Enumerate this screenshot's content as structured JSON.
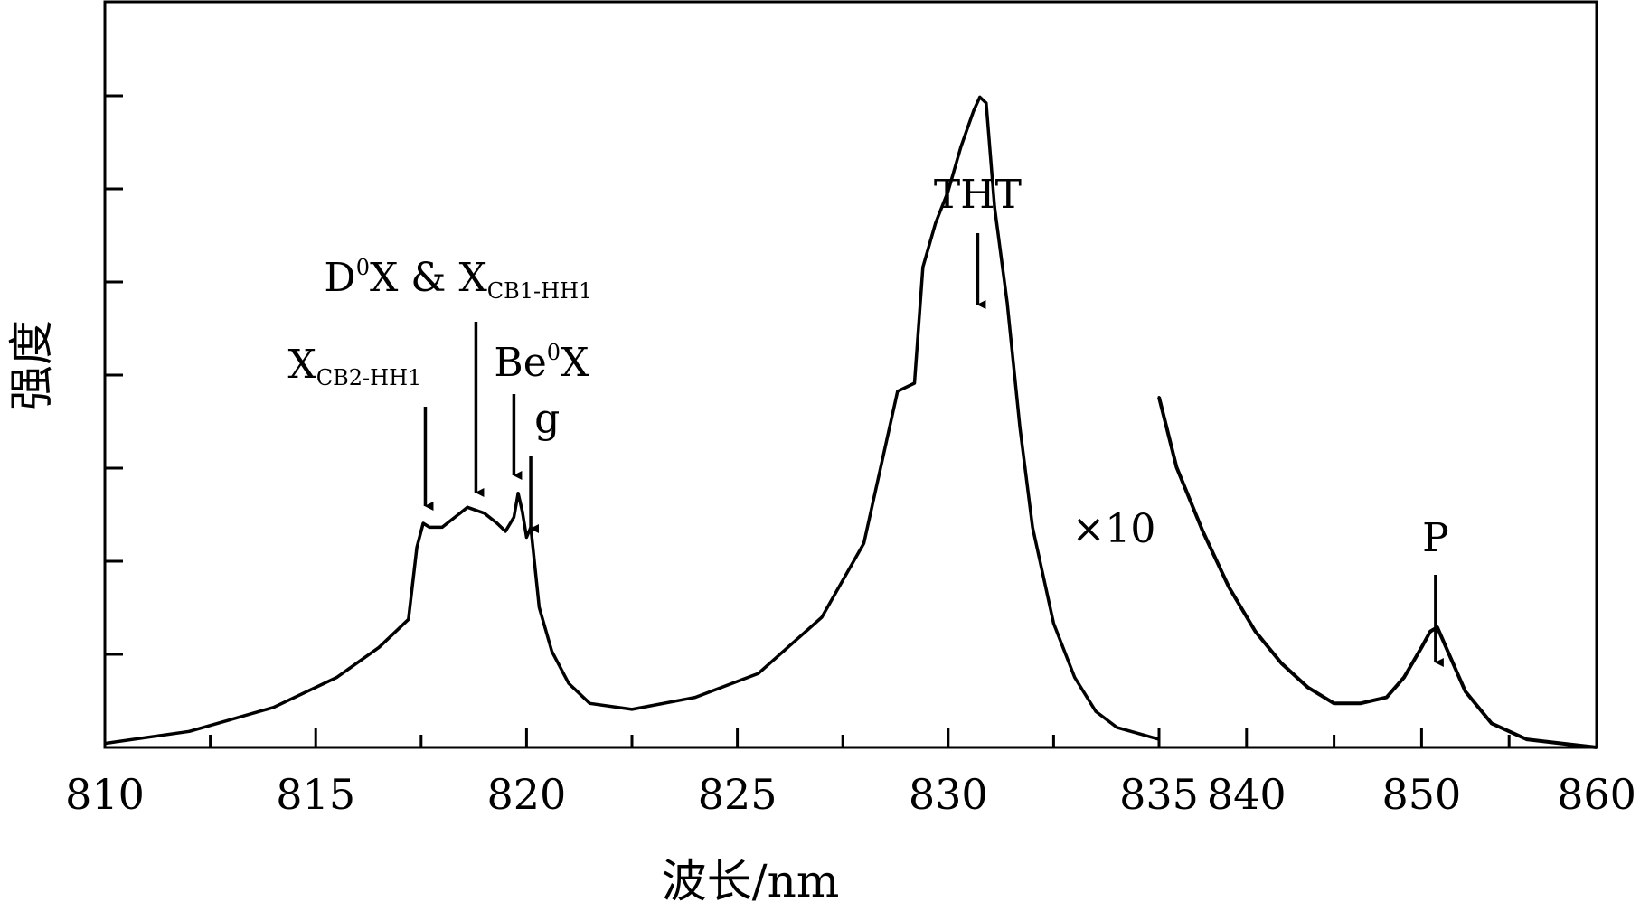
{
  "chart_data": {
    "type": "line",
    "xlabel": "波长/nm",
    "ylabel": "强度",
    "segments": [
      {
        "name": "main",
        "xlim": [
          810,
          835
        ],
        "tick_values": [
          810,
          815,
          820,
          825,
          830,
          835
        ],
        "tick_labels": [
          "810",
          "815",
          "820",
          "825",
          "830",
          "835"
        ],
        "minor_ticks": [
          812.5,
          817.5,
          822.5,
          827.5,
          832.5
        ],
        "x": [
          810.0,
          812.0,
          814.0,
          815.5,
          816.5,
          817.2,
          817.4,
          817.55,
          817.7,
          818.0,
          818.6,
          819.0,
          819.3,
          819.5,
          819.7,
          819.8,
          819.9,
          820.0,
          820.1,
          820.3,
          820.6,
          821.0,
          821.5,
          822.5,
          824.0,
          825.5,
          827.0,
          828.0,
          828.8,
          829.2,
          829.4,
          829.7,
          830.0,
          830.3,
          830.6,
          830.75,
          830.9,
          831.1,
          831.4,
          831.7,
          832.0,
          832.5,
          833.0,
          833.5,
          834.0,
          835.0
        ],
        "y": [
          2,
          8,
          20,
          35,
          50,
          64,
          100,
          112,
          110,
          110,
          120,
          117,
          112,
          108,
          115,
          127,
          118,
          105,
          110,
          70,
          48,
          32,
          22,
          19,
          25,
          37,
          65,
          102,
          178,
          182,
          240,
          262,
          278,
          300,
          318,
          325,
          322,
          270,
          222,
          160,
          110,
          62,
          35,
          18,
          10,
          4
        ],
        "annotations": [
          {
            "label": "XCB2-HH1",
            "main": "X",
            "sub": "CB2-HH1",
            "x": 817.6
          },
          {
            "label": "D0X & XCB1-HH1",
            "text": "D",
            "sup": "0",
            "rest": "X & X",
            "sub": "CB1-HH1",
            "x": 818.8
          },
          {
            "label": "Be0X",
            "main": "Be",
            "sup": "0",
            "rest": "X",
            "x": 819.7
          },
          {
            "label": "g",
            "main": "g",
            "x": 820.1
          },
          {
            "label": "THT",
            "main": "THT",
            "x": 830.7
          }
        ]
      },
      {
        "name": "x10",
        "scale_label": "×10",
        "xlim": [
          835,
          860
        ],
        "tick_values": [
          840,
          850,
          860
        ],
        "tick_labels": [
          "840",
          "850",
          "860"
        ],
        "minor_ticks": [
          845,
          855
        ],
        "x": [
          835.0,
          836.0,
          837.5,
          839.0,
          840.5,
          842.0,
          843.5,
          845.0,
          846.5,
          848.0,
          849.0,
          850.0,
          850.5,
          850.9,
          851.5,
          852.5,
          854.0,
          856.0,
          858.0,
          860.0
        ],
        "y": [
          175,
          140,
          108,
          80,
          58,
          42,
          30,
          22,
          22,
          25,
          35,
          50,
          58,
          60,
          48,
          28,
          12,
          4,
          2,
          0
        ],
        "annotations": [
          {
            "label": "P",
            "main": "P",
            "x": 850.8
          }
        ]
      }
    ],
    "ylim": [
      0,
      350
    ]
  }
}
